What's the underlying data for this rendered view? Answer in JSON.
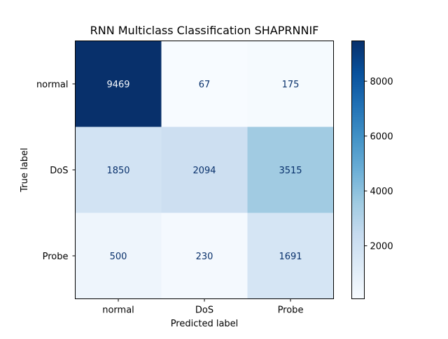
{
  "chart_data": {
    "type": "heatmap",
    "title": "RNN Multiclass Classification SHAPRNNIF",
    "xlabel": "Predicted label",
    "ylabel": "True label",
    "x_categories": [
      "normal",
      "DoS",
      "Probe"
    ],
    "y_categories": [
      "normal",
      "DoS",
      "Probe"
    ],
    "matrix": [
      [
        9469,
        67,
        175
      ],
      [
        1850,
        2094,
        3515
      ],
      [
        500,
        230,
        1691
      ]
    ],
    "colormap": "Blues",
    "value_range": [
      67,
      9469
    ],
    "colorbar_ticks": [
      2000,
      4000,
      6000,
      8000
    ],
    "grid": false,
    "colors": {
      "low": "#f7fbff",
      "high": "#08306b",
      "text_dark": "#08306b",
      "text_light": "#f7fbff"
    }
  }
}
